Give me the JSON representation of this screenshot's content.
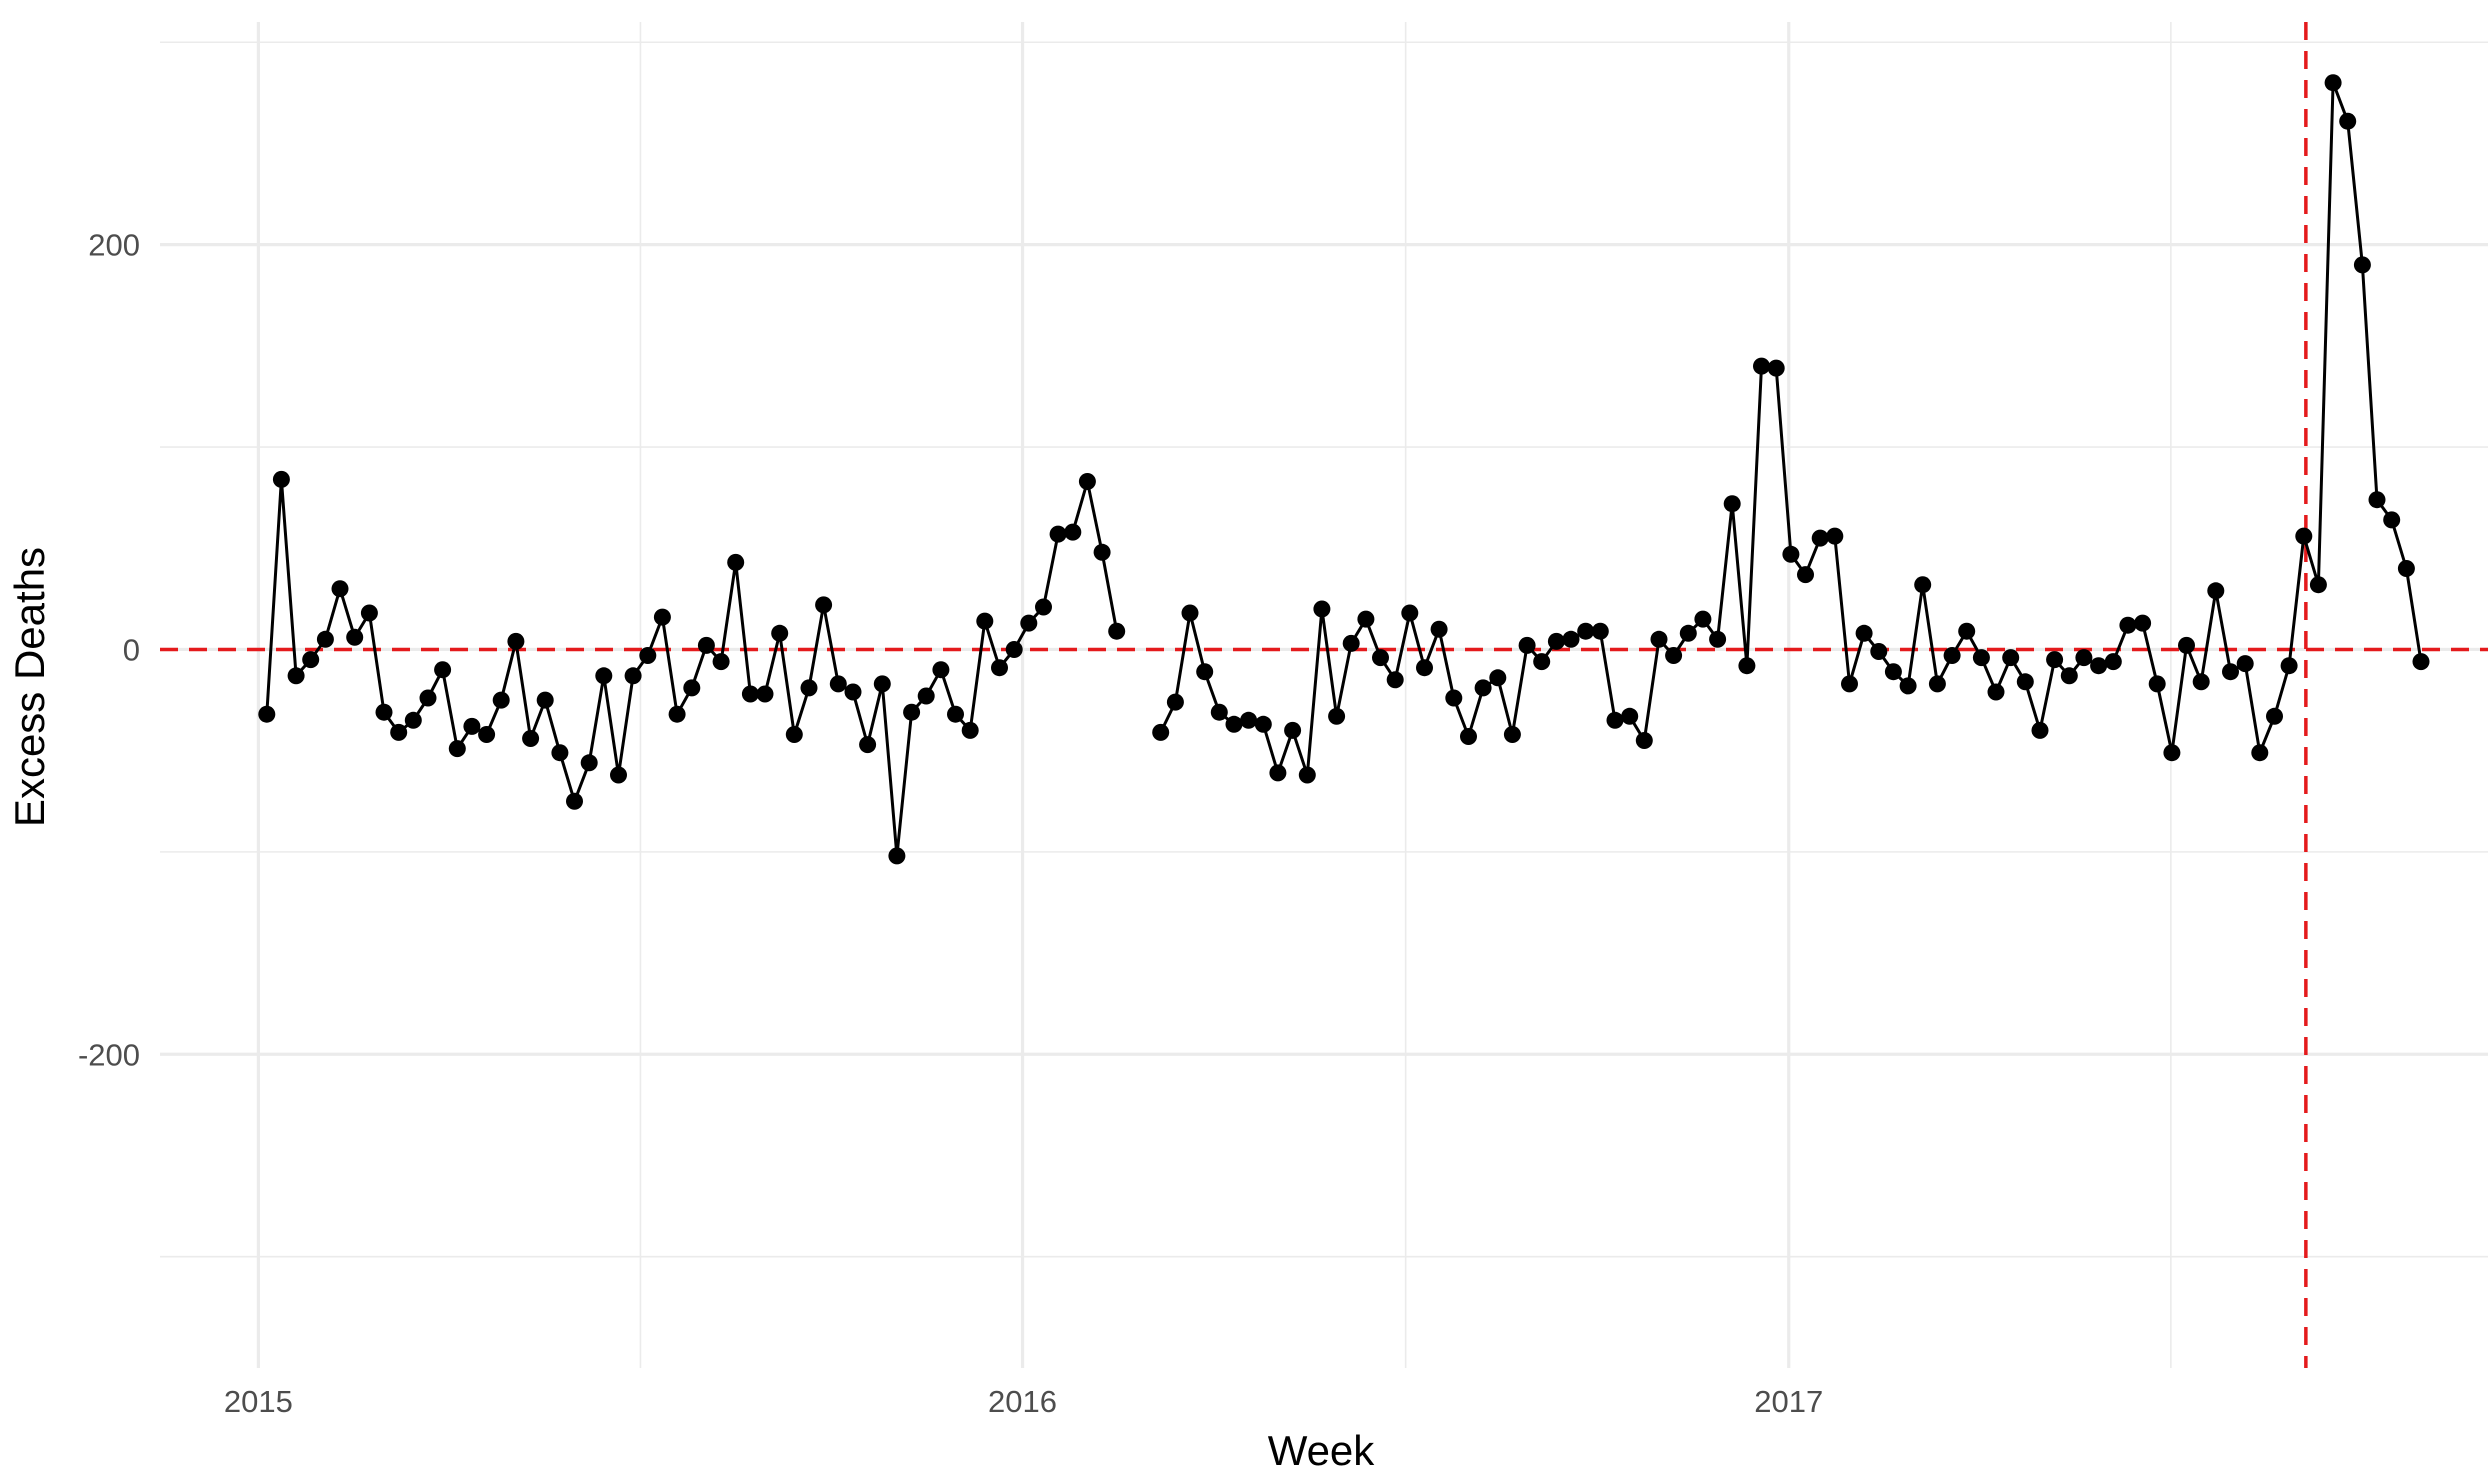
{
  "chart_data": {
    "type": "line",
    "title": "",
    "xlabel": "Week",
    "ylabel": "Excess Deaths",
    "x_ticks": [
      {
        "date": "2015-01-01",
        "label": "2015"
      },
      {
        "date": "2016-01-01",
        "label": "2016"
      },
      {
        "date": "2017-01-01",
        "label": "2017"
      }
    ],
    "y_ticks": [
      {
        "value": -200,
        "label": "-200"
      },
      {
        "value": 0,
        "label": "0"
      },
      {
        "value": 200,
        "label": "200"
      }
    ],
    "xlim": [
      "2014-11-15",
      "2017-12-01"
    ],
    "ylim": [
      -355,
      310
    ],
    "grid": true,
    "colors": {
      "line": "#000000",
      "points": "#000000",
      "reference": "#e41a1c",
      "grid": "#ebebeb"
    },
    "reference_lines": [
      {
        "axis": "y",
        "value": 0,
        "style": "dashed"
      },
      {
        "axis": "x",
        "date": "2017-09-05",
        "style": "dashed"
      }
    ],
    "series": [
      {
        "segments": [
          {
            "start_date": "2015-01-05",
            "values": [
              -32,
              84,
              -13,
              -5,
              5,
              30,
              6,
              18,
              -31,
              -41,
              -35,
              -24,
              -10,
              -49,
              -38,
              -42,
              -25,
              4,
              -44,
              -25,
              -51,
              -75,
              -56,
              -13,
              -62,
              -13,
              -3,
              16,
              -32,
              -19,
              2,
              -6,
              43,
              -22,
              -22,
              8,
              -42,
              -19,
              22,
              -17,
              -21,
              -47,
              -17,
              -102,
              -31,
              -23,
              -10,
              -32,
              -40,
              14,
              -9,
              0,
              13,
              21,
              57,
              58,
              83,
              48,
              9
            ]
          },
          {
            "start_date": "2016-03-07",
            "values": [
              -41,
              -26,
              18,
              -11,
              -31,
              -37,
              -35,
              -37,
              -61,
              -40,
              -62,
              20,
              -33,
              3,
              15,
              -4,
              -15,
              18,
              -9,
              10,
              -24,
              -43,
              -19,
              -14,
              -42,
              2,
              -6,
              4,
              5,
              9,
              9,
              -35,
              -33,
              -45,
              5,
              -3,
              8,
              15,
              5,
              72,
              -8,
              140,
              139,
              47,
              37,
              55,
              56,
              -17,
              8,
              -1,
              -11,
              -18,
              32,
              -17,
              -3,
              9,
              -4,
              -21,
              -4,
              -16,
              -40,
              -5,
              -13,
              -4,
              -8,
              -6,
              12,
              13,
              -17,
              -51,
              2,
              -16,
              29,
              -11,
              -7,
              -51,
              -33,
              -8,
              56,
              32,
              280,
              261,
              190,
              74,
              64,
              40,
              -6
            ]
          }
        ]
      }
    ]
  }
}
